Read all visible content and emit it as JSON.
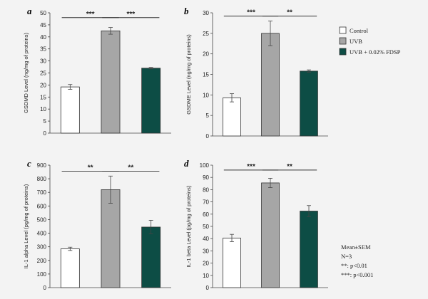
{
  "chart_data": [
    {
      "type": "bar",
      "panel": "a",
      "categories": [
        "Control",
        "UVB",
        "UVB + 0.02% FDSP"
      ],
      "values": [
        19.2,
        42.5,
        27.0
      ],
      "errors": [
        1.0,
        1.4,
        0.3
      ],
      "ylabel": "GSDMD Level (ng/mg of proteins)",
      "ylim": [
        0,
        50
      ],
      "ticks": [
        0,
        5,
        10,
        15,
        20,
        25,
        30,
        35,
        40,
        45,
        50
      ],
      "significance": [
        {
          "from": 0,
          "to": 1,
          "label": "***",
          "level": 48
        },
        {
          "from": 1,
          "to": 2,
          "label": "***",
          "level": 48
        }
      ]
    },
    {
      "type": "bar",
      "panel": "b",
      "categories": [
        "Control",
        "UVB",
        "UVB + 0.02% FDSP"
      ],
      "values": [
        9.3,
        25.0,
        15.8
      ],
      "errors": [
        1.0,
        3.0,
        0.3
      ],
      "ylabel": "GSDME Level (ng/mg of proteins)",
      "ylim": [
        0,
        30
      ],
      "ticks": [
        0,
        5,
        10,
        15,
        20,
        25,
        30
      ],
      "significance": [
        {
          "from": 0,
          "to": 1,
          "label": "***",
          "level": 29.2
        },
        {
          "from": 1,
          "to": 2,
          "label": "**",
          "level": 29.2
        }
      ]
    },
    {
      "type": "bar",
      "panel": "c",
      "categories": [
        "Control",
        "UVB",
        "UVB + 0.02% FDSP"
      ],
      "values": [
        285,
        720,
        445
      ],
      "errors": [
        12,
        100,
        50
      ],
      "ylabel": "IL-1 alpha Level (pg/mg of proteins)",
      "ylim": [
        0,
        900
      ],
      "ticks": [
        0,
        100,
        200,
        300,
        400,
        500,
        600,
        700,
        800,
        900
      ],
      "significance": [
        {
          "from": 0,
          "to": 1,
          "label": "**",
          "level": 855
        },
        {
          "from": 1,
          "to": 2,
          "label": "**",
          "level": 855
        }
      ]
    },
    {
      "type": "bar",
      "panel": "d",
      "categories": [
        "Control",
        "UVB",
        "UVB + 0.02% FDSP"
      ],
      "values": [
        40.5,
        85.5,
        62.5
      ],
      "errors": [
        3.0,
        3.8,
        4.5
      ],
      "ylabel": "IL-1 beta Level (pg/mg of proteins)",
      "ylim": [
        0,
        100
      ],
      "ticks": [
        0,
        10,
        20,
        30,
        40,
        50,
        60,
        70,
        80,
        90,
        100
      ],
      "significance": [
        {
          "from": 0,
          "to": 1,
          "label": "***",
          "level": 96
        },
        {
          "from": 1,
          "to": 2,
          "label": "**",
          "level": 96
        }
      ]
    }
  ],
  "colors": {
    "Control": "#ffffff",
    "UVB": "#a6a6a6",
    "UVB + 0.02% FDSP": "#0d4d45",
    "axis": "#444444",
    "background": "#f3f3f3"
  },
  "legend": {
    "placement": "right",
    "items": [
      "Control",
      "UVB",
      "UVB + 0.02% FDSP"
    ]
  },
  "notes": [
    "Mean±SEM",
    "N=3",
    "**: p<0.01",
    "***: p<0.001"
  ]
}
